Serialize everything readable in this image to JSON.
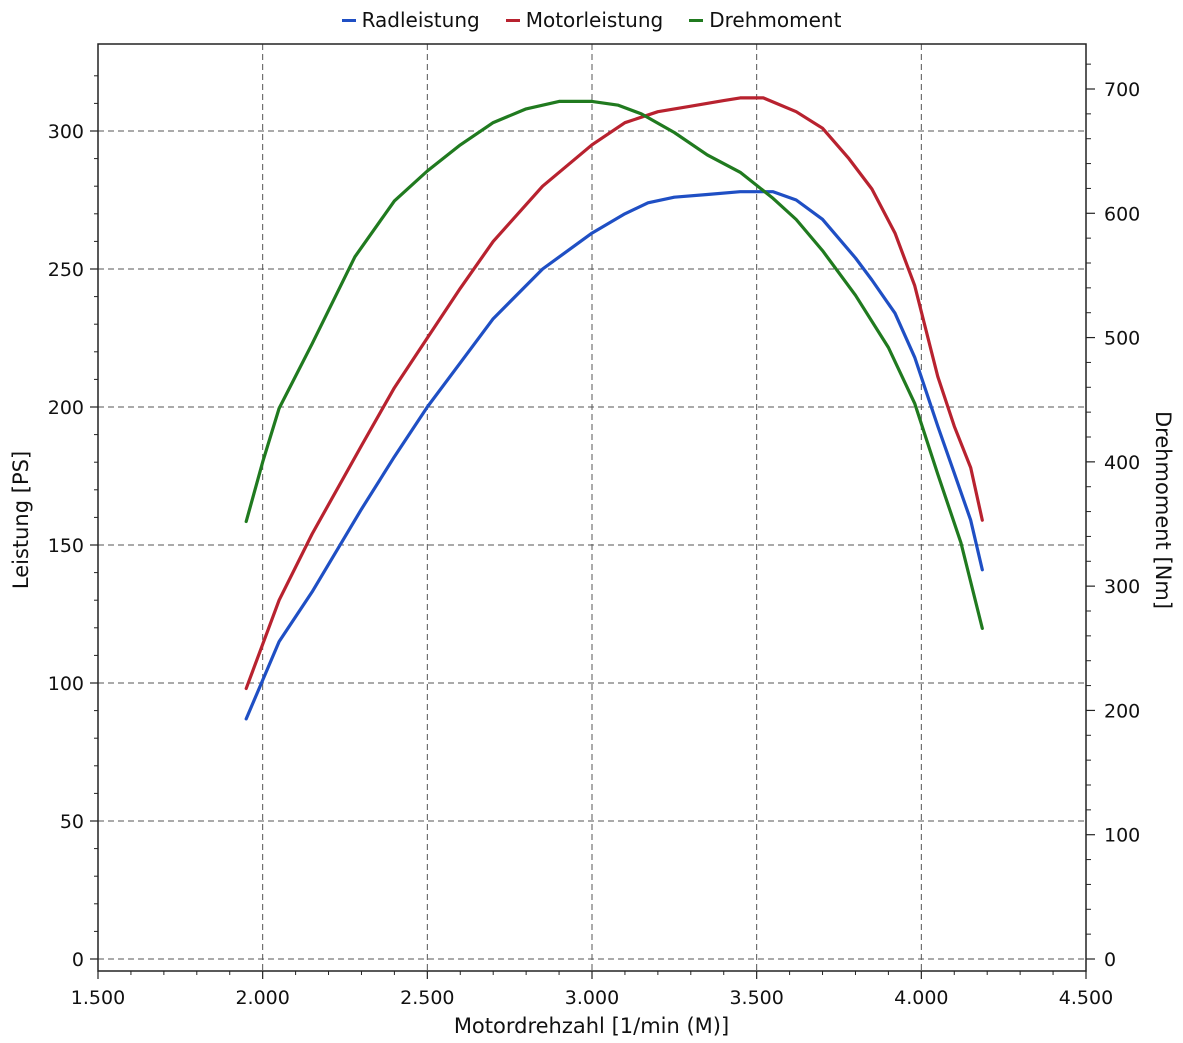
{
  "chart_data": {
    "type": "line",
    "xlabel": "Motordrehzahl [1/min (M)]",
    "ylabel": "Leistung [PS]",
    "y2label": "Drehmoment [Nm]",
    "xlim": [
      1500,
      4500
    ],
    "ylim": [
      0,
      330
    ],
    "y2lim": [
      0,
      720
    ],
    "grid": true,
    "legend_position": "top-center",
    "x_ticks": [
      1500,
      2000,
      2500,
      3000,
      3500,
      4000,
      4500
    ],
    "x_tick_labels": [
      "1.500",
      "2.000",
      "2.500",
      "3.000",
      "3.500",
      "4.000",
      "4.500"
    ],
    "y_ticks": [
      0,
      50,
      100,
      150,
      200,
      250,
      300
    ],
    "y_tick_labels": [
      "0",
      "50",
      "100",
      "150",
      "200",
      "250",
      "300"
    ],
    "y2_ticks": [
      0,
      100,
      200,
      300,
      400,
      500,
      600,
      700
    ],
    "y2_tick_labels": [
      "0",
      "100",
      "200",
      "300",
      "400",
      "500",
      "600",
      "700"
    ],
    "series": [
      {
        "name": "Radleistung",
        "axis": "left",
        "color": "#1f4fc4",
        "x": [
          1950,
          2050,
          2150,
          2300,
          2400,
          2500,
          2600,
          2700,
          2850,
          3000,
          3100,
          3170,
          3250,
          3350,
          3450,
          3550,
          3620,
          3700,
          3800,
          3850,
          3920,
          3980,
          4050,
          4100,
          4150,
          4185
        ],
        "y": [
          87,
          115,
          133,
          163,
          182,
          200,
          216,
          232,
          250,
          263,
          270,
          274,
          276,
          277,
          278,
          278,
          275,
          268,
          254,
          246,
          234,
          218,
          193,
          176,
          159,
          141
        ]
      },
      {
        "name": "Motorleistung",
        "axis": "left",
        "color": "#b8222f",
        "x": [
          1950,
          2050,
          2150,
          2300,
          2400,
          2500,
          2600,
          2700,
          2850,
          3000,
          3100,
          3200,
          3300,
          3400,
          3450,
          3520,
          3560,
          3620,
          3700,
          3780,
          3850,
          3920,
          3980,
          4050,
          4100,
          4150,
          4185
        ],
        "y": [
          98,
          130,
          154,
          186,
          207,
          225,
          243,
          260,
          280,
          295,
          303,
          307,
          309,
          311,
          312,
          312,
          310,
          307,
          301,
          290,
          279,
          263,
          244,
          211,
          193,
          178,
          159
        ]
      },
      {
        "name": "Drehmoment",
        "axis": "right",
        "color": "#207a1f",
        "x": [
          1950,
          2000,
          2050,
          2150,
          2280,
          2400,
          2500,
          2600,
          2700,
          2800,
          2900,
          3000,
          3080,
          3150,
          3250,
          3350,
          3450,
          3550,
          3620,
          3700,
          3800,
          3900,
          3980,
          4050,
          4120,
          4185
        ],
        "y": [
          352,
          400,
          443,
          495,
          565,
          610,
          634,
          655,
          673,
          684,
          690,
          690,
          687,
          680,
          665,
          647,
          633,
          612,
          595,
          570,
          534,
          492,
          447,
          390,
          335,
          266
        ]
      }
    ]
  }
}
